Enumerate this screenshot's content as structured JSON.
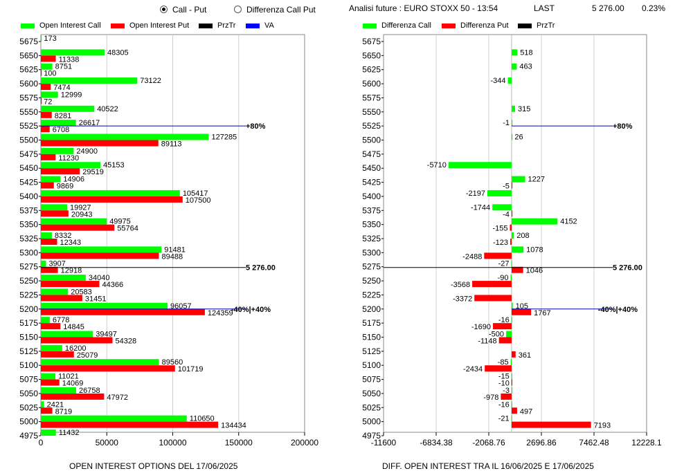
{
  "header": {
    "mode_options": [
      {
        "label": "Call - Put",
        "selected": true
      },
      {
        "label": "Differenza Call Put",
        "selected": false
      }
    ],
    "title": "Analisi future : EURO STOXX 50 - 13:54",
    "last_label": "LAST",
    "last_value": "5 276.00",
    "change_pct": "0.23%"
  },
  "colors": {
    "call": "#00ff00",
    "put": "#ff0000",
    "prztr": "#000000",
    "va": "#0000ff",
    "price_line": "#000000",
    "level_line": "#0000aa"
  },
  "chart_data": [
    {
      "type": "bar",
      "orientation": "horizontal",
      "xlabel": "OPEN INTEREST OPTIONS DEL 17/06/2025",
      "legend": [
        {
          "label": "Open Interest Call",
          "color": "#00ff00"
        },
        {
          "label": "Open Interest Put",
          "color": "#ff0000"
        },
        {
          "label": "PrzTr",
          "color": "#000000"
        },
        {
          "label": "VA",
          "color": "#0000ff"
        }
      ],
      "xlim": [
        0,
        200000
      ],
      "xticks": [
        "0",
        "50000",
        "100000",
        "150000",
        "200000"
      ],
      "categories": [
        "5675",
        "5650",
        "5625",
        "5600",
        "5575",
        "5550",
        "5525",
        "5500",
        "5475",
        "5450",
        "5425",
        "5400",
        "5375",
        "5350",
        "5325",
        "5300",
        "5275",
        "5250",
        "5225",
        "5200",
        "5175",
        "5150",
        "5125",
        "5100",
        "5075",
        "5050",
        "5025",
        "5000",
        "4975"
      ],
      "series": [
        {
          "name": "Open Interest Call",
          "values": [
            173,
            48305,
            8751,
            73122,
            12999,
            40522,
            26617,
            127285,
            24900,
            45153,
            14906,
            105417,
            19927,
            49975,
            8332,
            91481,
            3907,
            34040,
            20583,
            96057,
            6778,
            39497,
            16200,
            89560,
            11021,
            26758,
            2421,
            110650,
            11432
          ]
        },
        {
          "name": "Open Interest Put",
          "values": [
            null,
            11338,
            100,
            7474,
            72,
            8281,
            6708,
            89113,
            11230,
            29519,
            9869,
            107500,
            20943,
            55764,
            12343,
            89488,
            12918,
            44366,
            31451,
            124359,
            14845,
            54328,
            25079,
            101719,
            14069,
            47972,
            8719,
            134434,
            null
          ]
        }
      ],
      "levels": [
        {
          "strike": "5525",
          "label": "+80%"
        },
        {
          "strike": "5275",
          "label": "5 276.00"
        },
        {
          "strike": "5200",
          "label": "-40%|+40%"
        }
      ]
    },
    {
      "type": "bar",
      "orientation": "horizontal",
      "xlabel": "DIFF. OPEN INTEREST TRA IL 16/06/2025 E 17/06/2025",
      "legend": [
        {
          "label": "Differenza Call",
          "color": "#00ff00"
        },
        {
          "label": "Differenza Put",
          "color": "#ff0000"
        },
        {
          "label": "PrzTr",
          "color": "#000000"
        }
      ],
      "xlim": [
        -11600,
        12228.1
      ],
      "xticks": [
        "-11600",
        "-6834.38",
        "-2068.76",
        "2696.86",
        "7462.48",
        "12228.1"
      ],
      "categories": [
        "5675",
        "5650",
        "5625",
        "5600",
        "5575",
        "5550",
        "5525",
        "5500",
        "5475",
        "5450",
        "5425",
        "5400",
        "5375",
        "5350",
        "5325",
        "5300",
        "5275",
        "5250",
        "5225",
        "5200",
        "5175",
        "5150",
        "5125",
        "5100",
        "5075",
        "5050",
        "5025",
        "5000",
        "4975"
      ],
      "series": [
        {
          "name": "Differenza Call",
          "values": [
            null,
            518,
            463,
            -344,
            null,
            315,
            -1,
            26,
            null,
            -5710,
            1227,
            -2197,
            -1744,
            4152,
            208,
            1078,
            -27,
            -90,
            null,
            105,
            -16,
            -500,
            null,
            -85,
            -15,
            -3,
            -16,
            -21,
            null
          ]
        },
        {
          "name": "Differenza Put",
          "values": [
            null,
            null,
            null,
            null,
            null,
            null,
            null,
            null,
            null,
            null,
            -5,
            null,
            -4,
            -155,
            -123,
            -2488,
            1046,
            -3568,
            -3372,
            1767,
            -1690,
            -1148,
            361,
            -2434,
            -10,
            -978,
            497,
            7193,
            null
          ]
        }
      ],
      "levels": [
        {
          "strike": "5525",
          "label": "+80%"
        },
        {
          "strike": "5275",
          "label": "5 276.00"
        },
        {
          "strike": "5200",
          "label": "-40%|+40%"
        }
      ]
    }
  ]
}
